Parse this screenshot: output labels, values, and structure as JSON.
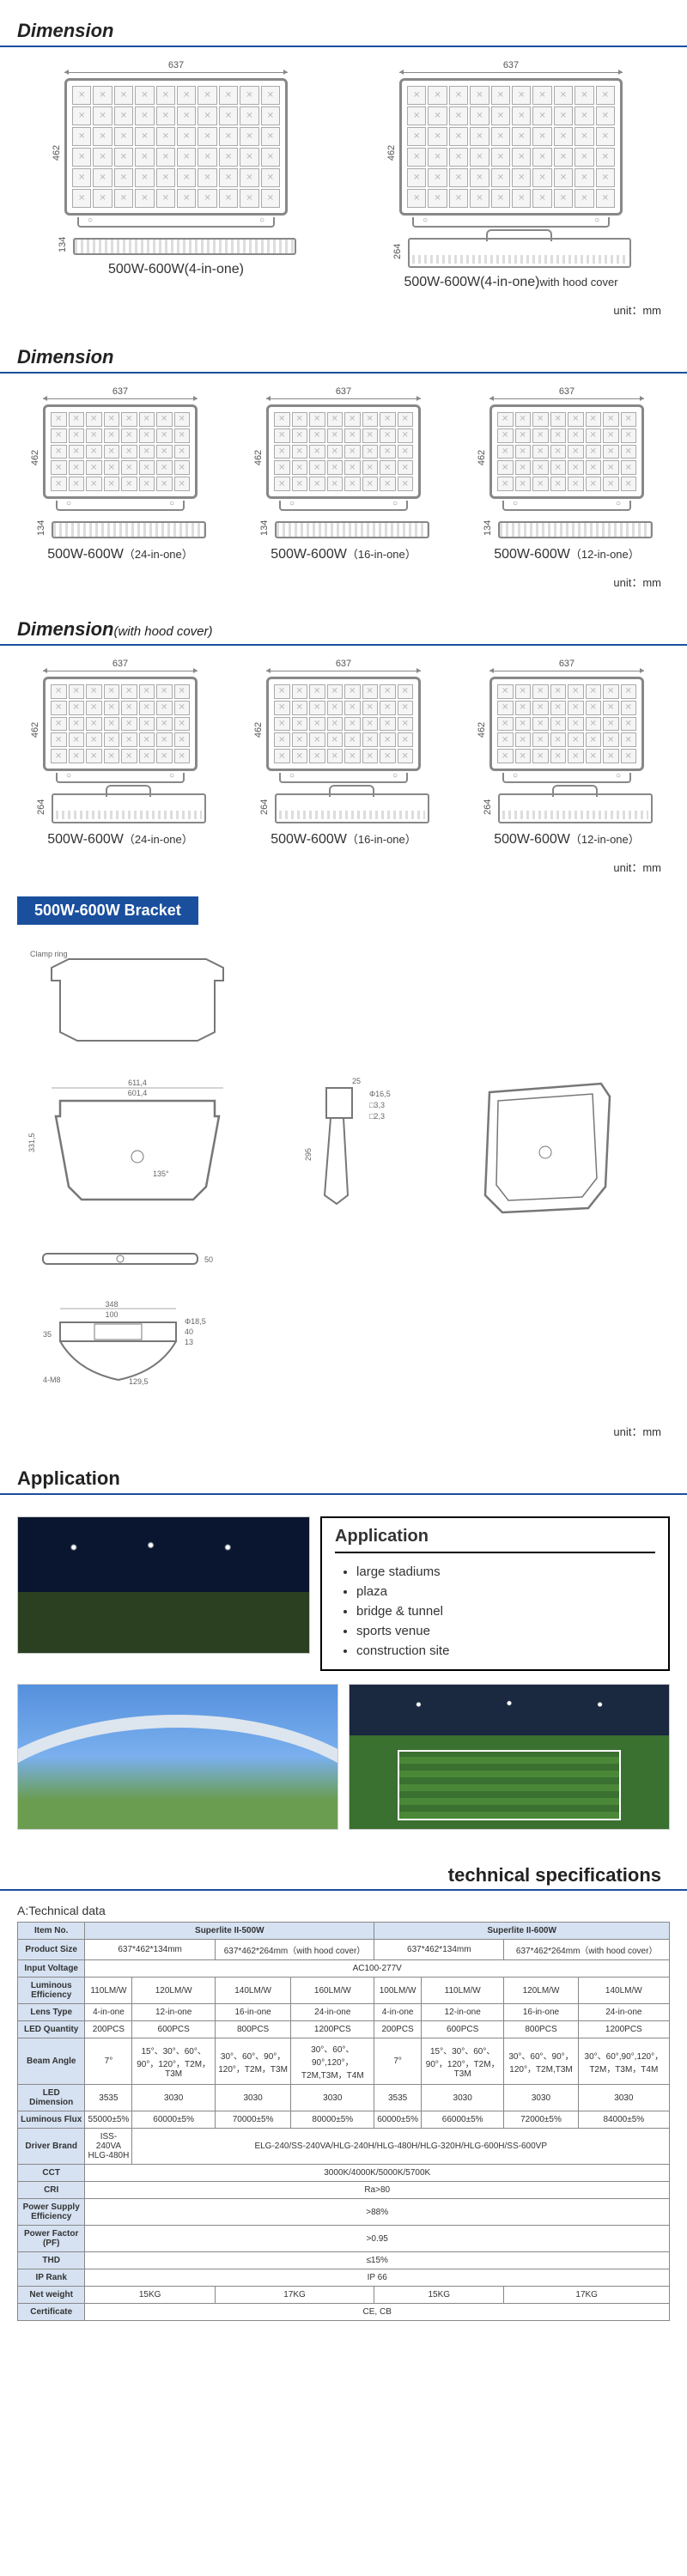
{
  "sections": {
    "dimension1": "Dimension",
    "dimension2": "Dimension",
    "dimension3": "Dimension",
    "dimension3_sub": "(with hood cover)",
    "bracket": "500W-600W Bracket",
    "application": "Application",
    "tech_spec": "technical specifications",
    "tech_sub": "A:Technical data"
  },
  "unit": "unit：mm",
  "dim_values": {
    "width": "637",
    "height": "462",
    "depth_std": "134",
    "depth_hood": "264"
  },
  "products_row1": [
    {
      "caption": "500W-600W(4-in-one)",
      "grid_cols": 10,
      "grid_rows": 6,
      "hood": false
    },
    {
      "caption": "500W-600W(4-in-one)",
      "caption_sub": "with hood cover",
      "grid_cols": 10,
      "grid_rows": 6,
      "hood": true
    }
  ],
  "products_row2": [
    {
      "caption": "500W-600W",
      "caption_sub": "（24-in-one）",
      "grid_cols": 8,
      "grid_rows": 5
    },
    {
      "caption": "500W-600W",
      "caption_sub": "（16-in-one）",
      "grid_cols": 8,
      "grid_rows": 5
    },
    {
      "caption": "500W-600W",
      "caption_sub": "（12-in-one）",
      "grid_cols": 8,
      "grid_rows": 5
    }
  ],
  "products_row3": [
    {
      "caption": "500W-600W",
      "caption_sub": "（24-in-one）",
      "grid_cols": 8,
      "grid_rows": 5
    },
    {
      "caption": "500W-600W",
      "caption_sub": "（16-in-one）",
      "grid_cols": 8,
      "grid_rows": 5
    },
    {
      "caption": "500W-600W",
      "caption_sub": "（12-in-one）",
      "grid_cols": 8,
      "grid_rows": 5
    }
  ],
  "bracket_dims": {
    "outer_w": "611,4",
    "inner_w": "601,4",
    "clamp_label": "Clamp ring",
    "height": "331,5",
    "small_h": "295",
    "angle": "135°",
    "thread": "Φ16,5",
    "slot1": "□3,3",
    "slot2": "□2,3",
    "righttop": "25",
    "base_w": "348",
    "base_inner": "100",
    "base_h": "35",
    "bolt": "4-M8",
    "arc": "129,5",
    "hole": "Φ18,5",
    "depth": "40",
    "slit": "13",
    "side_bar_th": "50"
  },
  "app_box": {
    "title": "Application",
    "items": [
      "large stadiums",
      "plaza",
      "bridge & tunnel",
      "sports venue",
      "construction site"
    ]
  },
  "tech_table": {
    "header": [
      "Item No.",
      "Superlite II-500W",
      "Superlite II-600W"
    ],
    "rows": [
      {
        "label": "Product Size",
        "cells": [
          "637*462*134mm",
          "637*462*264mm（with hood cover）",
          "637*462*134mm",
          "637*462*264mm（with hood cover）"
        ],
        "spans": [
          2,
          2,
          2,
          2
        ]
      },
      {
        "label": "Input Voltage",
        "cells": [
          "AC100-277V"
        ],
        "spans": [
          8
        ]
      },
      {
        "label": "Luminous Efficiency",
        "cells": [
          "110LM/W",
          "120LM/W",
          "140LM/W",
          "160LM/W",
          "100LM/W",
          "110LM/W",
          "120LM/W",
          "140LM/W"
        ],
        "spans": [
          1,
          1,
          1,
          1,
          1,
          1,
          1,
          1
        ]
      },
      {
        "label": "Lens Type",
        "cells": [
          "4-in-one",
          "12-in-one",
          "16-in-one",
          "24-in-one",
          "4-in-one",
          "12-in-one",
          "16-in-one",
          "24-in-one"
        ],
        "spans": [
          1,
          1,
          1,
          1,
          1,
          1,
          1,
          1
        ]
      },
      {
        "label": "LED Quantity",
        "cells": [
          "200PCS",
          "600PCS",
          "800PCS",
          "1200PCS",
          "200PCS",
          "600PCS",
          "800PCS",
          "1200PCS"
        ],
        "spans": [
          1,
          1,
          1,
          1,
          1,
          1,
          1,
          1
        ]
      },
      {
        "label": "Beam Angle",
        "cells": [
          "7°",
          "15°、30°、60°、90°，120°，T2M，T3M",
          "30°、60°、90°，120°，T2M，T3M",
          "30°、60°、90°,120°，T2M,T3M，T4M",
          "7°",
          "15°、30°、60°、90°，120°，T2M，T3M",
          "30°、60°、90°，120°，T2M,T3M",
          "30°、60°,90°,120°，T2M，T3M，T4M"
        ],
        "spans": [
          1,
          1,
          1,
          1,
          1,
          1,
          1,
          1
        ]
      },
      {
        "label": "LED Dimension",
        "cells": [
          "3535",
          "3030",
          "3030",
          "3030",
          "3535",
          "3030",
          "3030",
          "3030"
        ],
        "spans": [
          1,
          1,
          1,
          1,
          1,
          1,
          1,
          1
        ]
      },
      {
        "label": "Luminous Flux",
        "cells": [
          "55000±5%",
          "60000±5%",
          "70000±5%",
          "80000±5%",
          "60000±5%",
          "66000±5%",
          "72000±5%",
          "84000±5%"
        ],
        "spans": [
          1,
          1,
          1,
          1,
          1,
          1,
          1,
          1
        ]
      },
      {
        "label": "Driver Brand",
        "cells": [
          "ISS-240VA\nHLG-480H",
          "ELG-240/SS-240VA/HLG-240H/HLG-480H/HLG-320H/HLG-600H/SS-600VP"
        ],
        "spans": [
          1,
          7
        ]
      },
      {
        "label": "CCT",
        "cells": [
          "3000K/4000K/5000K/5700K"
        ],
        "spans": [
          8
        ]
      },
      {
        "label": "CRI",
        "cells": [
          "Ra>80"
        ],
        "spans": [
          8
        ]
      },
      {
        "label": "Power Supply Efficiency",
        "cells": [
          ">88%"
        ],
        "spans": [
          8
        ]
      },
      {
        "label": "Power Factor (PF)",
        "cells": [
          ">0.95"
        ],
        "spans": [
          8
        ]
      },
      {
        "label": "THD",
        "cells": [
          "≤15%"
        ],
        "spans": [
          8
        ]
      },
      {
        "label": "IP Rank",
        "cells": [
          "IP 66"
        ],
        "spans": [
          8
        ]
      },
      {
        "label": "Net weight",
        "cells": [
          "15KG",
          "17KG",
          "15KG",
          "17KG"
        ],
        "spans": [
          2,
          2,
          2,
          2
        ]
      },
      {
        "label": "Certificate",
        "cells": [
          "CE, CB"
        ],
        "spans": [
          8
        ]
      }
    ]
  }
}
